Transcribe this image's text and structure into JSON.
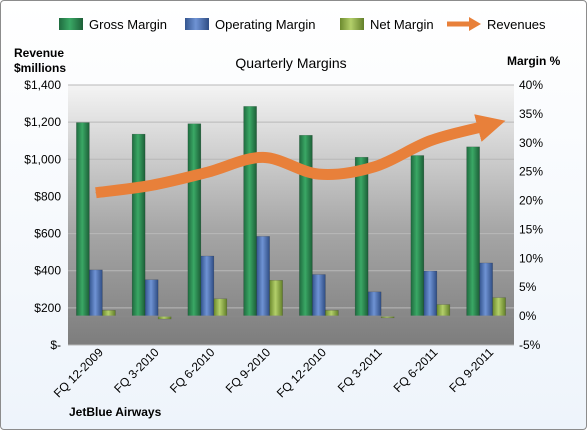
{
  "chart_data": {
    "type": "bar",
    "title": "Quarterly Margins",
    "left_axis_label_lines": [
      "Revenue",
      "$millions"
    ],
    "right_axis_label": "Margin %",
    "footer": "JetBlue Airways",
    "categories": [
      "FQ 12-2009",
      "FQ 3-2010",
      "FQ 6-2010",
      "FQ 9-2010",
      "FQ 12-2010",
      "FQ 3-2011",
      "FQ 6-2011",
      "FQ 9-2011"
    ],
    "left_axis": {
      "min": 0,
      "max": 1400,
      "step": 200,
      "tick_labels": [
        "$-",
        "$200",
        "$400",
        "$600",
        "$800",
        "$1,000",
        "$1,200",
        "$1,400"
      ]
    },
    "right_axis": {
      "min": -5,
      "max": 40,
      "step": 5,
      "tick_labels": [
        "-5%",
        "0%",
        "5%",
        "10%",
        "15%",
        "20%",
        "25%",
        "30%",
        "35%",
        "40%"
      ]
    },
    "series": [
      {
        "name": "Gross Margin",
        "axis": "right",
        "kind": "bar",
        "color": "#2e8b57",
        "values": [
          33.5,
          31.5,
          33.3,
          36.3,
          31.3,
          27.5,
          27.8,
          29.3
        ]
      },
      {
        "name": "Operating Margin",
        "axis": "right",
        "kind": "bar",
        "color": "#4f74b8",
        "values": [
          8.0,
          6.3,
          10.4,
          13.8,
          7.2,
          4.2,
          7.8,
          9.2
        ]
      },
      {
        "name": "Net Margin",
        "axis": "right",
        "kind": "bar",
        "color": "#92b04a",
        "values": [
          1.0,
          -0.5,
          3.0,
          6.2,
          1.0,
          -0.3,
          2.0,
          3.2
        ]
      },
      {
        "name": "Revenues",
        "axis": "left",
        "kind": "line",
        "color": "#e8803a",
        "values": [
          820,
          860,
          930,
          1010,
          920,
          960,
          1100,
          1180
        ]
      }
    ],
    "grid": true,
    "legend_position": "top"
  }
}
